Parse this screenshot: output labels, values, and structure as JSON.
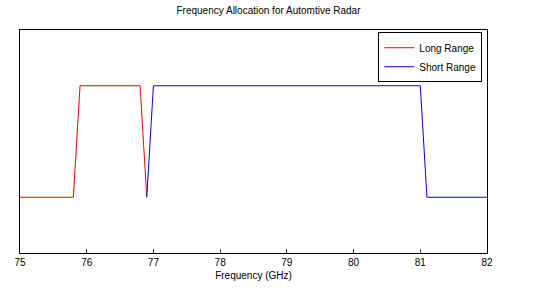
{
  "chart_data": {
    "type": "line",
    "title": "Frequency Allocation for Automtive Radar",
    "x_label": "Frequency (GHz)",
    "series": [
      {
        "name": "Long Range",
        "color": "#ff0000",
        "x": [
          75,
          75.8,
          75.9,
          76.8,
          76.9
        ],
        "values": [
          0,
          0,
          1,
          1,
          0
        ]
      },
      {
        "name": "Short Range",
        "color": "#0000ff",
        "x": [
          76.9,
          77.0,
          81.0,
          81.1,
          82
        ],
        "values": [
          0,
          1,
          1,
          0,
          0
        ]
      }
    ],
    "xlim": [
      75,
      82
    ],
    "xticks": [
      75,
      76,
      77,
      78,
      79,
      80,
      81,
      82
    ],
    "ylim": [
      -0.5,
      1.5
    ],
    "tick_labels": "x",
    "grid": false,
    "legend": "upper right"
  }
}
